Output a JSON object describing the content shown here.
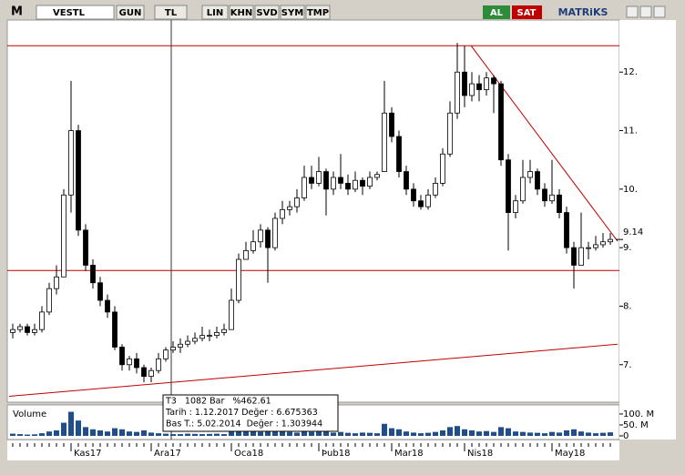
{
  "toolbar": {
    "logo": "M",
    "symbol": "VESTL",
    "buttons": [
      "GUN",
      "TL",
      "LIN",
      "KHN",
      "SVD",
      "SYM",
      "TMP"
    ],
    "buy": "AL",
    "sell": "SAT",
    "brand": "MATRiKS"
  },
  "chart_data": {
    "type": "candlestick",
    "up_color": "#ffffff",
    "down_color": "#000000",
    "line_color": "#c00000",
    "categories": [
      null,
      null,
      null,
      null,
      null,
      null,
      null,
      null,
      "Kas17",
      null,
      null,
      null,
      null,
      null,
      null,
      null,
      null,
      null,
      null,
      "Ara17",
      null,
      null,
      null,
      null,
      null,
      null,
      null,
      null,
      null,
      null,
      "Oca18",
      null,
      null,
      null,
      null,
      null,
      null,
      null,
      null,
      null,
      null,
      null,
      "Þub18",
      null,
      null,
      null,
      null,
      null,
      null,
      null,
      null,
      null,
      "Mar18",
      null,
      null,
      null,
      null,
      null,
      null,
      null,
      null,
      null,
      "Nis18",
      null,
      null,
      null,
      null,
      null,
      null,
      null,
      null,
      null,
      null,
      null,
      "May18",
      null,
      null,
      null,
      null,
      null,
      null,
      null,
      null
    ],
    "ohlc": [
      [
        7.55,
        7.7,
        7.45,
        7.6
      ],
      [
        7.6,
        7.7,
        7.55,
        7.65
      ],
      [
        7.65,
        7.7,
        7.5,
        7.55
      ],
      [
        7.55,
        7.7,
        7.5,
        7.6
      ],
      [
        7.6,
        8.0,
        7.55,
        7.9
      ],
      [
        7.9,
        8.4,
        7.85,
        8.3
      ],
      [
        8.3,
        8.7,
        8.2,
        8.5
      ],
      [
        8.5,
        10.0,
        8.5,
        9.9
      ],
      [
        9.9,
        11.85,
        9.6,
        11.0
      ],
      [
        11.0,
        11.1,
        9.2,
        9.3
      ],
      [
        9.3,
        9.4,
        8.6,
        8.7
      ],
      [
        8.7,
        8.8,
        8.3,
        8.4
      ],
      [
        8.4,
        8.5,
        8.0,
        8.1
      ],
      [
        8.1,
        8.2,
        7.8,
        7.9
      ],
      [
        7.9,
        8.0,
        7.25,
        7.3
      ],
      [
        7.3,
        7.35,
        6.9,
        7.0
      ],
      [
        7.0,
        7.15,
        6.9,
        7.1
      ],
      [
        7.1,
        7.2,
        6.85,
        6.95
      ],
      [
        6.95,
        7.0,
        6.7,
        6.8
      ],
      [
        6.8,
        6.95,
        6.7,
        6.9
      ],
      [
        6.9,
        7.2,
        6.85,
        7.1
      ],
      [
        7.1,
        7.3,
        7.05,
        7.25
      ],
      [
        7.25,
        7.4,
        7.2,
        7.3
      ],
      [
        7.3,
        7.45,
        7.2,
        7.35
      ],
      [
        7.35,
        7.5,
        7.3,
        7.4
      ],
      [
        7.4,
        7.55,
        7.35,
        7.45
      ],
      [
        7.45,
        7.65,
        7.4,
        7.5
      ],
      [
        7.5,
        7.6,
        7.4,
        7.5
      ],
      [
        7.5,
        7.65,
        7.45,
        7.55
      ],
      [
        7.55,
        7.7,
        7.5,
        7.6
      ],
      [
        7.6,
        8.3,
        7.6,
        8.1
      ],
      [
        8.1,
        8.9,
        8.05,
        8.8
      ],
      [
        8.8,
        9.1,
        8.8,
        8.95
      ],
      [
        8.95,
        9.3,
        8.9,
        9.1
      ],
      [
        9.1,
        9.4,
        9.0,
        9.3
      ],
      [
        9.3,
        9.35,
        8.4,
        9.0
      ],
      [
        9.0,
        9.6,
        8.95,
        9.5
      ],
      [
        9.5,
        9.8,
        9.4,
        9.65
      ],
      [
        9.65,
        9.8,
        9.55,
        9.7
      ],
      [
        9.7,
        10.0,
        9.6,
        9.85
      ],
      [
        9.85,
        10.4,
        9.8,
        10.2
      ],
      [
        10.2,
        10.4,
        10.0,
        10.1
      ],
      [
        10.1,
        10.55,
        10.05,
        10.3
      ],
      [
        10.3,
        10.35,
        9.55,
        10.0
      ],
      [
        10.0,
        10.3,
        9.9,
        10.2
      ],
      [
        10.2,
        10.6,
        10.0,
        10.1
      ],
      [
        10.1,
        10.25,
        9.9,
        10.0
      ],
      [
        10.0,
        10.3,
        9.95,
        10.15
      ],
      [
        10.15,
        10.2,
        9.9,
        10.05
      ],
      [
        10.05,
        10.3,
        10.0,
        10.2
      ],
      [
        10.2,
        10.3,
        10.15,
        10.25
      ],
      [
        10.3,
        11.85,
        10.3,
        11.3
      ],
      [
        11.3,
        11.4,
        10.8,
        10.9
      ],
      [
        10.9,
        11.0,
        10.2,
        10.3
      ],
      [
        10.3,
        10.4,
        9.9,
        10.0
      ],
      [
        10.0,
        10.1,
        9.7,
        9.8
      ],
      [
        9.8,
        9.9,
        9.65,
        9.7
      ],
      [
        9.7,
        10.0,
        9.65,
        9.9
      ],
      [
        9.9,
        10.2,
        9.85,
        10.1
      ],
      [
        10.1,
        10.7,
        10.05,
        10.6
      ],
      [
        10.6,
        11.5,
        10.55,
        11.3
      ],
      [
        11.3,
        12.5,
        11.2,
        12.0
      ],
      [
        12.0,
        12.45,
        11.4,
        11.6
      ],
      [
        11.6,
        12.0,
        11.5,
        11.8
      ],
      [
        11.8,
        11.95,
        11.5,
        11.7
      ],
      [
        11.7,
        12.0,
        11.6,
        11.9
      ],
      [
        11.9,
        11.95,
        11.3,
        11.8
      ],
      [
        11.8,
        11.85,
        10.4,
        10.5
      ],
      [
        10.5,
        10.6,
        8.95,
        9.6
      ],
      [
        9.6,
        9.9,
        9.5,
        9.8
      ],
      [
        9.8,
        10.5,
        9.75,
        10.2
      ],
      [
        10.2,
        10.5,
        10.1,
        10.3
      ],
      [
        10.3,
        10.35,
        9.9,
        10.0
      ],
      [
        10.0,
        10.1,
        9.7,
        9.8
      ],
      [
        9.8,
        10.5,
        9.75,
        9.9
      ],
      [
        9.9,
        10.0,
        9.5,
        9.6
      ],
      [
        9.6,
        9.7,
        8.9,
        9.0
      ],
      [
        9.0,
        9.1,
        8.3,
        8.7
      ],
      [
        8.7,
        9.6,
        8.7,
        9.0
      ],
      [
        9.0,
        9.1,
        8.8,
        9.0
      ],
      [
        9.0,
        9.2,
        8.95,
        9.05
      ],
      [
        9.05,
        9.25,
        9.0,
        9.1
      ],
      [
        9.1,
        9.25,
        9.05,
        9.14
      ]
    ],
    "ylim": [
      6.39,
      12.89
    ],
    "yticks": [
      {
        "value": 7,
        "label": "7."
      },
      {
        "value": 8,
        "label": "8."
      },
      {
        "value": 9,
        "label": "9."
      },
      {
        "value": 10,
        "label": "10."
      },
      {
        "value": 11,
        "label": "11."
      },
      {
        "value": 12,
        "label": "12."
      }
    ],
    "last_price": 9.14,
    "hlines": [
      12.45,
      8.61
    ],
    "trendlines": [
      {
        "x": [
          62.9,
          83
        ],
        "y": [
          12.45,
          9.11
        ]
      },
      {
        "x": [
          -0.5,
          83
        ],
        "y": [
          6.46,
          7.35
        ]
      }
    ],
    "cursor_index": 21.75,
    "info_box": [
      "T3   1082 Bar   %462.61",
      "Tarih : 1.12.2017 Değer : 6.675363",
      "Bas T.: 5.02.2014  Değer : 1.303944"
    ],
    "volume": {
      "type": "bar",
      "title": "Volume",
      "color": "#1f4e8c",
      "ylim": [
        -12.5,
        133
      ],
      "yticks": [
        0,
        {
          "value": 50,
          "label": "50. M"
        },
        {
          "value": 100,
          "label": "100. M"
        }
      ],
      "values": [
        10,
        8,
        6,
        7,
        12,
        20,
        25,
        60,
        110,
        70,
        40,
        30,
        25,
        20,
        35,
        30,
        20,
        18,
        25,
        15,
        12,
        10,
        8,
        8,
        10,
        9,
        8,
        9,
        10,
        8,
        30,
        45,
        25,
        20,
        18,
        35,
        25,
        20,
        18,
        15,
        22,
        18,
        20,
        25,
        15,
        18,
        14,
        12,
        15,
        14,
        12,
        55,
        35,
        30,
        20,
        15,
        12,
        14,
        18,
        25,
        40,
        45,
        30,
        25,
        20,
        22,
        18,
        40,
        35,
        20,
        18,
        15,
        14,
        12,
        18,
        15,
        25,
        30,
        20,
        15,
        12,
        14,
        16
      ]
    }
  }
}
